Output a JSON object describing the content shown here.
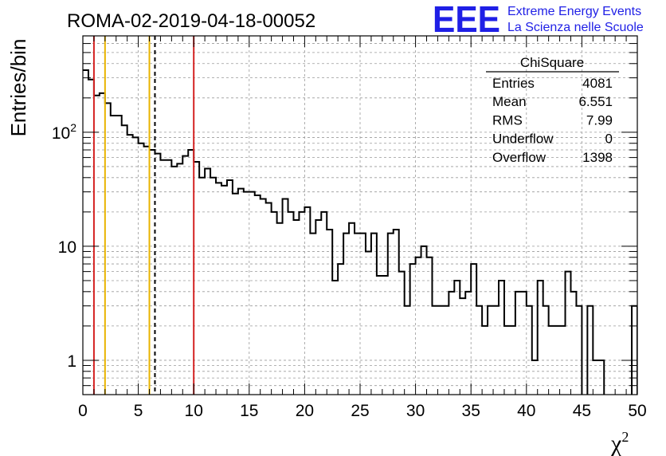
{
  "chart_data": {
    "type": "bar",
    "title": "ROMA-02-2019-04-18-00052",
    "xlabel": "χ",
    "xlabel_sup": "2",
    "ylabel": "Entries/bin",
    "xlim": [
      0,
      50
    ],
    "ylim": [
      0.5,
      700
    ],
    "y_scale": "log",
    "grid": true,
    "bin_width": 0.5,
    "x_ticks": [
      "0",
      "5",
      "10",
      "15",
      "20",
      "25",
      "30",
      "35",
      "40",
      "45",
      "50"
    ],
    "y_ticks": [
      {
        "value": 1,
        "label": "1"
      },
      {
        "value": 10,
        "label": "10"
      },
      {
        "value": 100,
        "label": "10",
        "sup": "2"
      }
    ],
    "values": [
      350,
      290,
      210,
      220,
      180,
      140,
      140,
      115,
      95,
      90,
      80,
      75,
      70,
      65,
      57,
      57,
      50,
      53,
      62,
      70,
      55,
      40,
      48,
      40,
      36,
      34,
      38,
      29,
      32,
      30,
      30,
      28,
      26,
      24,
      20,
      16,
      26,
      20,
      17,
      20,
      22,
      13,
      17,
      20,
      14,
      5,
      7,
      13,
      16,
      13,
      13,
      9,
      13,
      5.5,
      5.5,
      13,
      14,
      6,
      3,
      7,
      8,
      10,
      8,
      3,
      3,
      3,
      4,
      5,
      3.5,
      4,
      7,
      3,
      2,
      3,
      3,
      5,
      2,
      2,
      4,
      4,
      3,
      1,
      5,
      3,
      2,
      2,
      2,
      6,
      4,
      3,
      0,
      3,
      1,
      1,
      0,
      0,
      0,
      0,
      0,
      3,
      0
    ],
    "vertical_lines": [
      {
        "x": 1,
        "color": "#d42222",
        "style": "solid"
      },
      {
        "x": 2,
        "color": "#e8b400",
        "style": "solid"
      },
      {
        "x": 6,
        "color": "#e8b400",
        "style": "solid"
      },
      {
        "x": 6.5,
        "color": "#000000",
        "style": "dashed"
      },
      {
        "x": 10,
        "color": "#d42222",
        "style": "solid"
      }
    ],
    "stats": {
      "title": "ChiSquare",
      "rows": [
        {
          "label": "Entries",
          "value": "4081"
        },
        {
          "label": "Mean",
          "value": "6.551"
        },
        {
          "label": "RMS",
          "value": "7.99"
        },
        {
          "label": "Underflow",
          "value": "0"
        },
        {
          "label": "Overflow",
          "value": "1398"
        }
      ]
    }
  },
  "logo": {
    "mark": "EEE",
    "line1": "Extreme Energy Events",
    "line2": "La Scienza nelle Scuole",
    "color": "#1f1fe6"
  }
}
